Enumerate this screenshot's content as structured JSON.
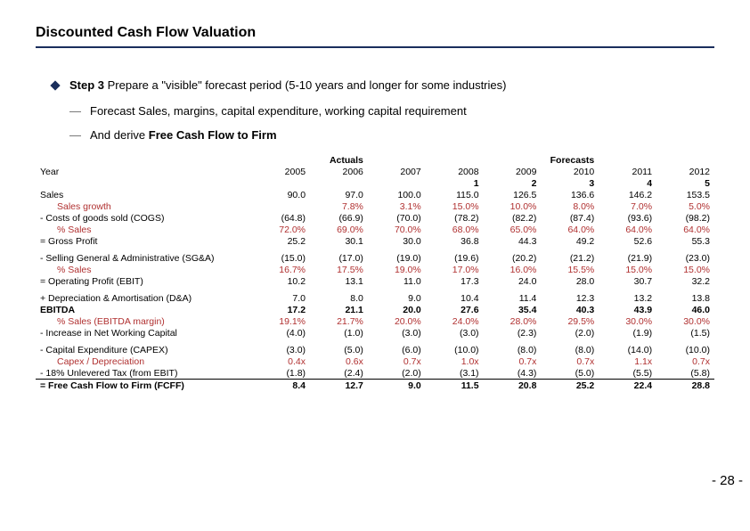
{
  "title": "Discounted Cash Flow Valuation",
  "bullet_main_prefix": "Step 3",
  "bullet_main_rest": " Prepare a \"visible\" forecast period (5-10 years and longer for some industries)",
  "bullet_sub1": "Forecast Sales, margins, capital expenditure, working capital requirement",
  "bullet_sub2_prefix": "And derive ",
  "bullet_sub2_bold": "Free Cash Flow to Firm",
  "page_num": "- 28\n-",
  "table": {
    "header": {
      "year_label": "Year",
      "actuals_label": "Actuals",
      "forecasts_label": "Forecasts",
      "years": [
        "2005",
        "2006",
        "2007",
        "2008",
        "2009",
        "2010",
        "2011",
        "2012"
      ],
      "indices": [
        "",
        "",
        "",
        "1",
        "2",
        "3",
        "4",
        "5"
      ]
    },
    "rows": [
      {
        "type": "data",
        "label": "Sales",
        "vals": [
          "90.0",
          "97.0",
          "100.0",
          "115.0",
          "126.5",
          "136.6",
          "146.2",
          "153.5"
        ]
      },
      {
        "type": "data",
        "label": "Sales growth",
        "indent": 2,
        "red": true,
        "vals": [
          "",
          "7.8%",
          "3.1%",
          "15.0%",
          "10.0%",
          "8.0%",
          "7.0%",
          "5.0%"
        ]
      },
      {
        "type": "data",
        "label": "- Costs of goods sold (COGS)",
        "vals": [
          "(64.8)",
          "(66.9)",
          "(70.0)",
          "(78.2)",
          "(82.2)",
          "(87.4)",
          "(93.6)",
          "(98.2)"
        ]
      },
      {
        "type": "data",
        "label": "% Sales",
        "indent": 2,
        "red": true,
        "vals": [
          "72.0%",
          "69.0%",
          "70.0%",
          "68.0%",
          "65.0%",
          "64.0%",
          "64.0%",
          "64.0%"
        ]
      },
      {
        "type": "data",
        "label": "= Gross Profit",
        "vals": [
          "25.2",
          "30.1",
          "30.0",
          "36.8",
          "44.3",
          "49.2",
          "52.6",
          "55.3"
        ]
      },
      {
        "type": "spacer"
      },
      {
        "type": "data",
        "label": "- Selling General & Administrative (SG&A)",
        "vals": [
          "(15.0)",
          "(17.0)",
          "(19.0)",
          "(19.6)",
          "(20.2)",
          "(21.2)",
          "(21.9)",
          "(23.0)"
        ]
      },
      {
        "type": "data",
        "label": "% Sales",
        "indent": 2,
        "red": true,
        "vals": [
          "16.7%",
          "17.5%",
          "19.0%",
          "17.0%",
          "16.0%",
          "15.5%",
          "15.0%",
          "15.0%"
        ]
      },
      {
        "type": "data",
        "label": "= Operating Profit (EBIT)",
        "vals": [
          "10.2",
          "13.1",
          "11.0",
          "17.3",
          "24.0",
          "28.0",
          "30.7",
          "32.2"
        ]
      },
      {
        "type": "spacer"
      },
      {
        "type": "data",
        "label": "+ Depreciation & Amortisation (D&A)",
        "vals": [
          "7.0",
          "8.0",
          "9.0",
          "10.4",
          "11.4",
          "12.3",
          "13.2",
          "13.8"
        ]
      },
      {
        "type": "data",
        "label": "EBITDA",
        "bold": true,
        "vals": [
          "17.2",
          "21.1",
          "20.0",
          "27.6",
          "35.4",
          "40.3",
          "43.9",
          "46.0"
        ]
      },
      {
        "type": "data",
        "label": "% Sales (EBITDA margin)",
        "indent": 2,
        "red": true,
        "vals": [
          "19.1%",
          "21.7%",
          "20.0%",
          "24.0%",
          "28.0%",
          "29.5%",
          "30.0%",
          "30.0%"
        ]
      },
      {
        "type": "data",
        "label": "- Increase in Net Working Capital",
        "vals": [
          "(4.0)",
          "(1.0)",
          "(3.0)",
          "(3.0)",
          "(2.3)",
          "(2.0)",
          "(1.9)",
          "(1.5)"
        ]
      },
      {
        "type": "spacer"
      },
      {
        "type": "data",
        "label": "- Capital Expenditure (CAPEX)",
        "vals": [
          "(3.0)",
          "(5.0)",
          "(6.0)",
          "(10.0)",
          "(8.0)",
          "(8.0)",
          "(14.0)",
          "(10.0)"
        ]
      },
      {
        "type": "data",
        "label": "Capex / Depreciation",
        "indent": 2,
        "red": true,
        "vals": [
          "0.4x",
          "0.6x",
          "0.7x",
          "1.0x",
          "0.7x",
          "0.7x",
          "1.1x",
          "0.7x"
        ]
      },
      {
        "type": "data",
        "label": "- 18% Unlevered Tax (from EBIT)",
        "vals": [
          "(1.8)",
          "(2.4)",
          "(2.0)",
          "(3.1)",
          "(4.3)",
          "(5.0)",
          "(5.5)",
          "(5.8)"
        ]
      },
      {
        "type": "data",
        "label": "= Free Cash Flow to Firm (FCFF)",
        "bold": true,
        "border": true,
        "vals": [
          "8.4",
          "12.7",
          "9.0",
          "11.5",
          "20.8",
          "25.2",
          "22.4",
          "28.8"
        ]
      }
    ]
  },
  "colors": {
    "rule": "#1a2e5c",
    "red_text": "#b03030",
    "text": "#000000",
    "background": "#ffffff"
  }
}
